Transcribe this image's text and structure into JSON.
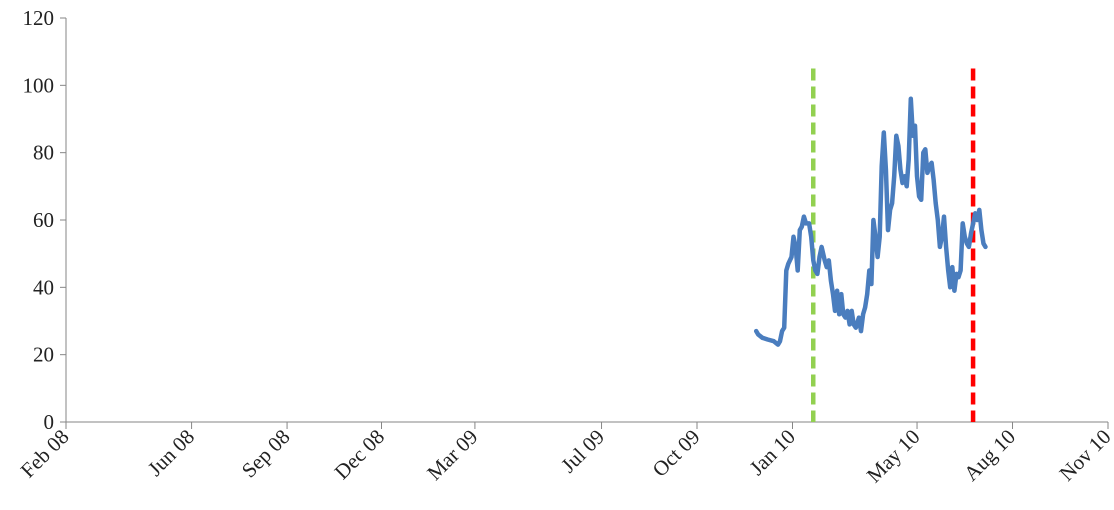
{
  "chart_data": {
    "type": "line",
    "title": "",
    "xlabel": "",
    "ylabel": "",
    "ylim": [
      0,
      120
    ],
    "yticks": [
      0,
      20,
      40,
      60,
      80,
      100,
      120
    ],
    "xlim": [
      "2008-02-01",
      "2010-11-01"
    ],
    "xticks": [
      {
        "date": "2008-02-01",
        "label": "Feb 08"
      },
      {
        "date": "2008-06-01",
        "label": "Jun 08"
      },
      {
        "date": "2008-09-01",
        "label": "Sep 08"
      },
      {
        "date": "2008-12-01",
        "label": "Dec 08"
      },
      {
        "date": "2009-03-01",
        "label": "Mar 09"
      },
      {
        "date": "2009-07-01",
        "label": "Jul 09"
      },
      {
        "date": "2009-10-01",
        "label": "Oct 09"
      },
      {
        "date": "2010-01-01",
        "label": "Jan 10"
      },
      {
        "date": "2010-05-01",
        "label": "May 10"
      },
      {
        "date": "2010-08-01",
        "label": "Aug 10"
      },
      {
        "date": "2010-11-01",
        "label": "Nov 10"
      }
    ],
    "grid": false,
    "legend": "none",
    "series": [
      {
        "color": "#4a7dbe",
        "points": [
          [
            "2009-11-27",
            27
          ],
          [
            "2009-11-29",
            26
          ],
          [
            "2009-12-03",
            25
          ],
          [
            "2009-12-08",
            24.5
          ],
          [
            "2009-12-14",
            24
          ],
          [
            "2009-12-18",
            23
          ],
          [
            "2009-12-20",
            24
          ],
          [
            "2009-12-22",
            27
          ],
          [
            "2009-12-24",
            28
          ],
          [
            "2009-12-26",
            45
          ],
          [
            "2009-12-28",
            47
          ],
          [
            "2009-12-31",
            49
          ],
          [
            "2010-01-02",
            55
          ],
          [
            "2010-01-04",
            52
          ],
          [
            "2010-01-06",
            45
          ],
          [
            "2010-01-08",
            57
          ],
          [
            "2010-01-10",
            58
          ],
          [
            "2010-01-12",
            61
          ],
          [
            "2010-01-14",
            59
          ],
          [
            "2010-01-17",
            59
          ],
          [
            "2010-01-19",
            55
          ],
          [
            "2010-01-21",
            48
          ],
          [
            "2010-01-23",
            45
          ],
          [
            "2010-01-25",
            44
          ],
          [
            "2010-01-27",
            49
          ],
          [
            "2010-01-29",
            52
          ],
          [
            "2010-02-01",
            48
          ],
          [
            "2010-02-03",
            46
          ],
          [
            "2010-02-05",
            48
          ],
          [
            "2010-02-07",
            42
          ],
          [
            "2010-02-09",
            38
          ],
          [
            "2010-02-11",
            33
          ],
          [
            "2010-02-13",
            39
          ],
          [
            "2010-02-15",
            32
          ],
          [
            "2010-02-17",
            38
          ],
          [
            "2010-02-19",
            32
          ],
          [
            "2010-02-21",
            31
          ],
          [
            "2010-02-23",
            33
          ],
          [
            "2010-02-25",
            29
          ],
          [
            "2010-02-27",
            33
          ],
          [
            "2010-03-01",
            29
          ],
          [
            "2010-03-03",
            28
          ],
          [
            "2010-03-06",
            31
          ],
          [
            "2010-03-08",
            27
          ],
          [
            "2010-03-10",
            32
          ],
          [
            "2010-03-12",
            34
          ],
          [
            "2010-03-14",
            38
          ],
          [
            "2010-03-16",
            45
          ],
          [
            "2010-03-18",
            41
          ],
          [
            "2010-03-20",
            60
          ],
          [
            "2010-03-22",
            55
          ],
          [
            "2010-03-24",
            49
          ],
          [
            "2010-03-26",
            55
          ],
          [
            "2010-03-28",
            76
          ],
          [
            "2010-03-30",
            86
          ],
          [
            "2010-04-01",
            75
          ],
          [
            "2010-04-03",
            57
          ],
          [
            "2010-04-05",
            63
          ],
          [
            "2010-04-07",
            65
          ],
          [
            "2010-04-09",
            73
          ],
          [
            "2010-04-11",
            85
          ],
          [
            "2010-04-13",
            82
          ],
          [
            "2010-04-15",
            75
          ],
          [
            "2010-04-17",
            71
          ],
          [
            "2010-04-19",
            73
          ],
          [
            "2010-04-21",
            70
          ],
          [
            "2010-04-23",
            78
          ],
          [
            "2010-04-25",
            96
          ],
          [
            "2010-04-27",
            85
          ],
          [
            "2010-04-29",
            88
          ],
          [
            "2010-05-01",
            73
          ],
          [
            "2010-05-03",
            67
          ],
          [
            "2010-05-05",
            66
          ],
          [
            "2010-05-07",
            80
          ],
          [
            "2010-05-09",
            81
          ],
          [
            "2010-05-11",
            74
          ],
          [
            "2010-05-13",
            76
          ],
          [
            "2010-05-15",
            77
          ],
          [
            "2010-05-17",
            72
          ],
          [
            "2010-05-19",
            65
          ],
          [
            "2010-05-21",
            60
          ],
          [
            "2010-05-23",
            52
          ],
          [
            "2010-05-25",
            55
          ],
          [
            "2010-05-27",
            61
          ],
          [
            "2010-05-29",
            52
          ],
          [
            "2010-05-31",
            45
          ],
          [
            "2010-06-02",
            40
          ],
          [
            "2010-06-04",
            46
          ],
          [
            "2010-06-06",
            39
          ],
          [
            "2010-06-08",
            44
          ],
          [
            "2010-06-10",
            43
          ],
          [
            "2010-06-12",
            45
          ],
          [
            "2010-06-14",
            59
          ],
          [
            "2010-06-16",
            55
          ],
          [
            "2010-06-18",
            53
          ],
          [
            "2010-06-20",
            52
          ],
          [
            "2010-06-22",
            56
          ],
          [
            "2010-06-24",
            59
          ],
          [
            "2010-06-26",
            62
          ],
          [
            "2010-06-28",
            60
          ],
          [
            "2010-06-30",
            63
          ],
          [
            "2010-07-02",
            57
          ],
          [
            "2010-07-04",
            53
          ],
          [
            "2010-07-06",
            52
          ]
        ]
      }
    ],
    "vertical_lines": [
      {
        "date": "2010-01-21",
        "color": "#92d050",
        "from": 0,
        "to": 105
      },
      {
        "date": "2010-06-24",
        "color": "#ff0000",
        "from": 0,
        "to": 105
      }
    ]
  }
}
